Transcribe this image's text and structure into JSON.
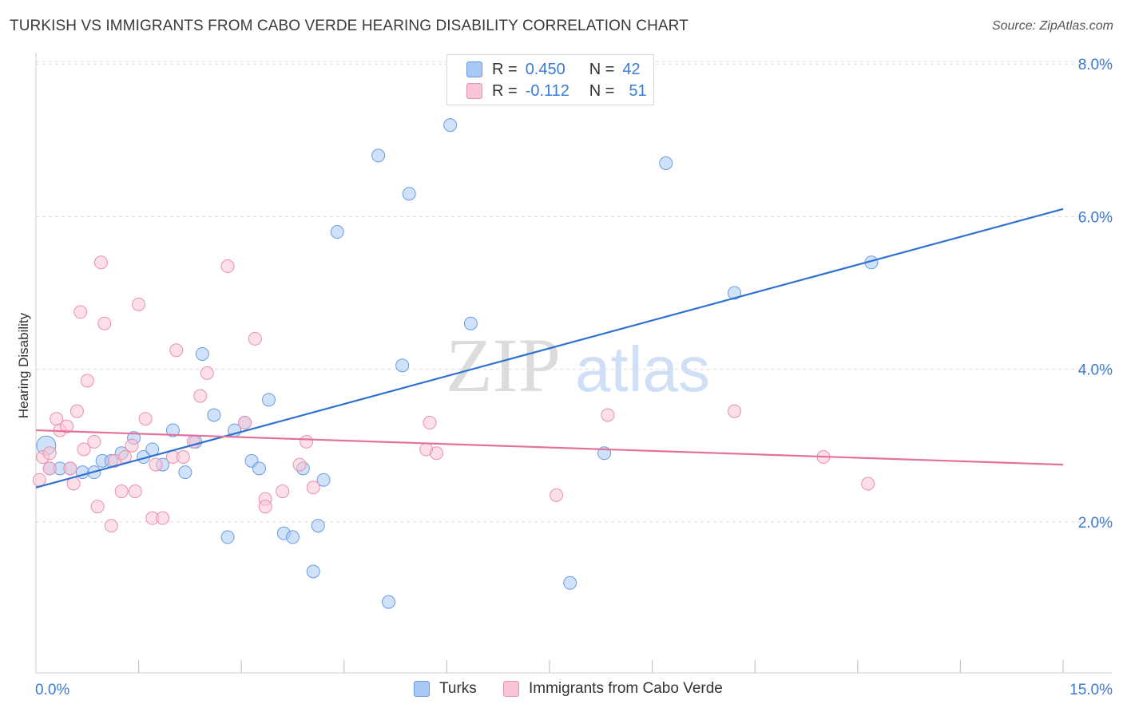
{
  "title": "TURKISH VS IMMIGRANTS FROM CABO VERDE HEARING DISABILITY CORRELATION CHART",
  "source": "Source: ZipAtlas.com",
  "watermark": {
    "zip": "ZIP",
    "atlas": "atlas"
  },
  "legend": {
    "rows": [
      {
        "r_label": "R =",
        "r_value": "0.450",
        "n_label": "N =",
        "n_value": "42",
        "color": "#a9c8f5",
        "border": "#6a9be0"
      },
      {
        "r_label": "R =",
        "r_value": "-0.112",
        "n_label": "N =",
        "n_value": "51",
        "color": "#f9c4d4",
        "border": "#e891ad"
      }
    ]
  },
  "chart_data": {
    "type": "scatter",
    "title": "TURKISH VS IMMIGRANTS FROM CABO VERDE HEARING DISABILITY CORRELATION CHART",
    "xlabel": "",
    "ylabel": "Hearing Disability",
    "xlim": [
      0,
      15
    ],
    "ylim": [
      0,
      8.3
    ],
    "x_tick_labels": [
      "0.0%",
      "15.0%"
    ],
    "y_ticks": [
      2,
      4,
      6,
      8
    ],
    "y_tick_labels": [
      "2.0%",
      "4.0%",
      "6.0%",
      "8.0%"
    ],
    "grid": true,
    "legend_placement": "top-center",
    "series": [
      {
        "name": "Turks",
        "color": "#a9c8f5",
        "stroke": "#6a9be0",
        "line_color": "#2f72d0",
        "trend": [
          [
            0,
            2.45
          ],
          [
            15,
            6.1
          ]
        ],
        "points": [
          [
            0.15,
            3.0
          ],
          [
            0.2,
            2.7
          ],
          [
            0.35,
            2.7
          ],
          [
            0.5,
            2.7
          ],
          [
            0.68,
            2.65
          ],
          [
            0.85,
            2.65
          ],
          [
            0.97,
            2.8
          ],
          [
            1.1,
            2.8
          ],
          [
            1.25,
            2.9
          ],
          [
            1.43,
            3.1
          ],
          [
            1.57,
            2.85
          ],
          [
            1.7,
            2.95
          ],
          [
            1.85,
            2.75
          ],
          [
            2.0,
            3.2
          ],
          [
            2.18,
            2.65
          ],
          [
            2.33,
            3.05
          ],
          [
            2.43,
            4.2
          ],
          [
            2.6,
            3.4
          ],
          [
            2.8,
            1.8
          ],
          [
            2.9,
            3.2
          ],
          [
            3.05,
            3.3
          ],
          [
            3.15,
            2.8
          ],
          [
            3.26,
            2.7
          ],
          [
            3.4,
            3.6
          ],
          [
            3.62,
            1.85
          ],
          [
            3.75,
            1.8
          ],
          [
            3.9,
            2.7
          ],
          [
            4.05,
            1.35
          ],
          [
            4.12,
            1.95
          ],
          [
            4.2,
            2.55
          ],
          [
            4.4,
            5.8
          ],
          [
            5.0,
            6.8
          ],
          [
            5.15,
            0.95
          ],
          [
            5.35,
            4.05
          ],
          [
            5.45,
            6.3
          ],
          [
            6.05,
            7.2
          ],
          [
            6.35,
            4.6
          ],
          [
            7.8,
            1.2
          ],
          [
            8.3,
            2.9
          ],
          [
            9.2,
            6.7
          ],
          [
            10.2,
            5.0
          ],
          [
            12.2,
            5.4
          ]
        ]
      },
      {
        "name": "Immigrants from Cabo Verde",
        "color": "#f9c4d4",
        "stroke": "#e891ad",
        "line_color": "#e5709a",
        "trend": [
          [
            0,
            3.2
          ],
          [
            15,
            2.75
          ]
        ],
        "points": [
          [
            0.05,
            2.55
          ],
          [
            0.1,
            2.85
          ],
          [
            0.2,
            2.9
          ],
          [
            0.3,
            3.35
          ],
          [
            0.35,
            3.2
          ],
          [
            0.45,
            3.25
          ],
          [
            0.5,
            2.7
          ],
          [
            0.55,
            2.5
          ],
          [
            0.6,
            3.45
          ],
          [
            0.65,
            4.75
          ],
          [
            0.7,
            2.95
          ],
          [
            0.75,
            3.85
          ],
          [
            0.85,
            3.05
          ],
          [
            0.9,
            2.2
          ],
          [
            0.95,
            5.4
          ],
          [
            1.0,
            4.6
          ],
          [
            1.1,
            1.95
          ],
          [
            1.15,
            2.8
          ],
          [
            1.25,
            2.4
          ],
          [
            1.3,
            2.85
          ],
          [
            1.4,
            3.0
          ],
          [
            1.45,
            2.4
          ],
          [
            1.5,
            4.85
          ],
          [
            1.6,
            3.35
          ],
          [
            1.7,
            2.05
          ],
          [
            1.75,
            2.75
          ],
          [
            1.85,
            2.05
          ],
          [
            2.0,
            2.85
          ],
          [
            2.05,
            4.25
          ],
          [
            2.15,
            2.85
          ],
          [
            2.3,
            3.05
          ],
          [
            2.4,
            3.65
          ],
          [
            2.5,
            3.95
          ],
          [
            2.8,
            5.35
          ],
          [
            3.05,
            3.3
          ],
          [
            3.2,
            4.4
          ],
          [
            3.35,
            2.3
          ],
          [
            3.35,
            2.2
          ],
          [
            3.6,
            2.4
          ],
          [
            3.85,
            2.75
          ],
          [
            3.95,
            3.05
          ],
          [
            4.05,
            2.45
          ],
          [
            5.7,
            2.95
          ],
          [
            5.75,
            3.3
          ],
          [
            5.85,
            2.9
          ],
          [
            7.6,
            2.35
          ],
          [
            8.35,
            3.4
          ],
          [
            10.2,
            3.45
          ],
          [
            11.5,
            2.85
          ],
          [
            12.15,
            2.5
          ],
          [
            0.2,
            2.7
          ]
        ]
      }
    ]
  },
  "bottom_legend": [
    {
      "label": "Turks",
      "color": "#a9c8f5",
      "border": "#6a9be0"
    },
    {
      "label": "Immigrants from Cabo Verde",
      "color": "#f9c4d4",
      "border": "#e891ad"
    }
  ]
}
